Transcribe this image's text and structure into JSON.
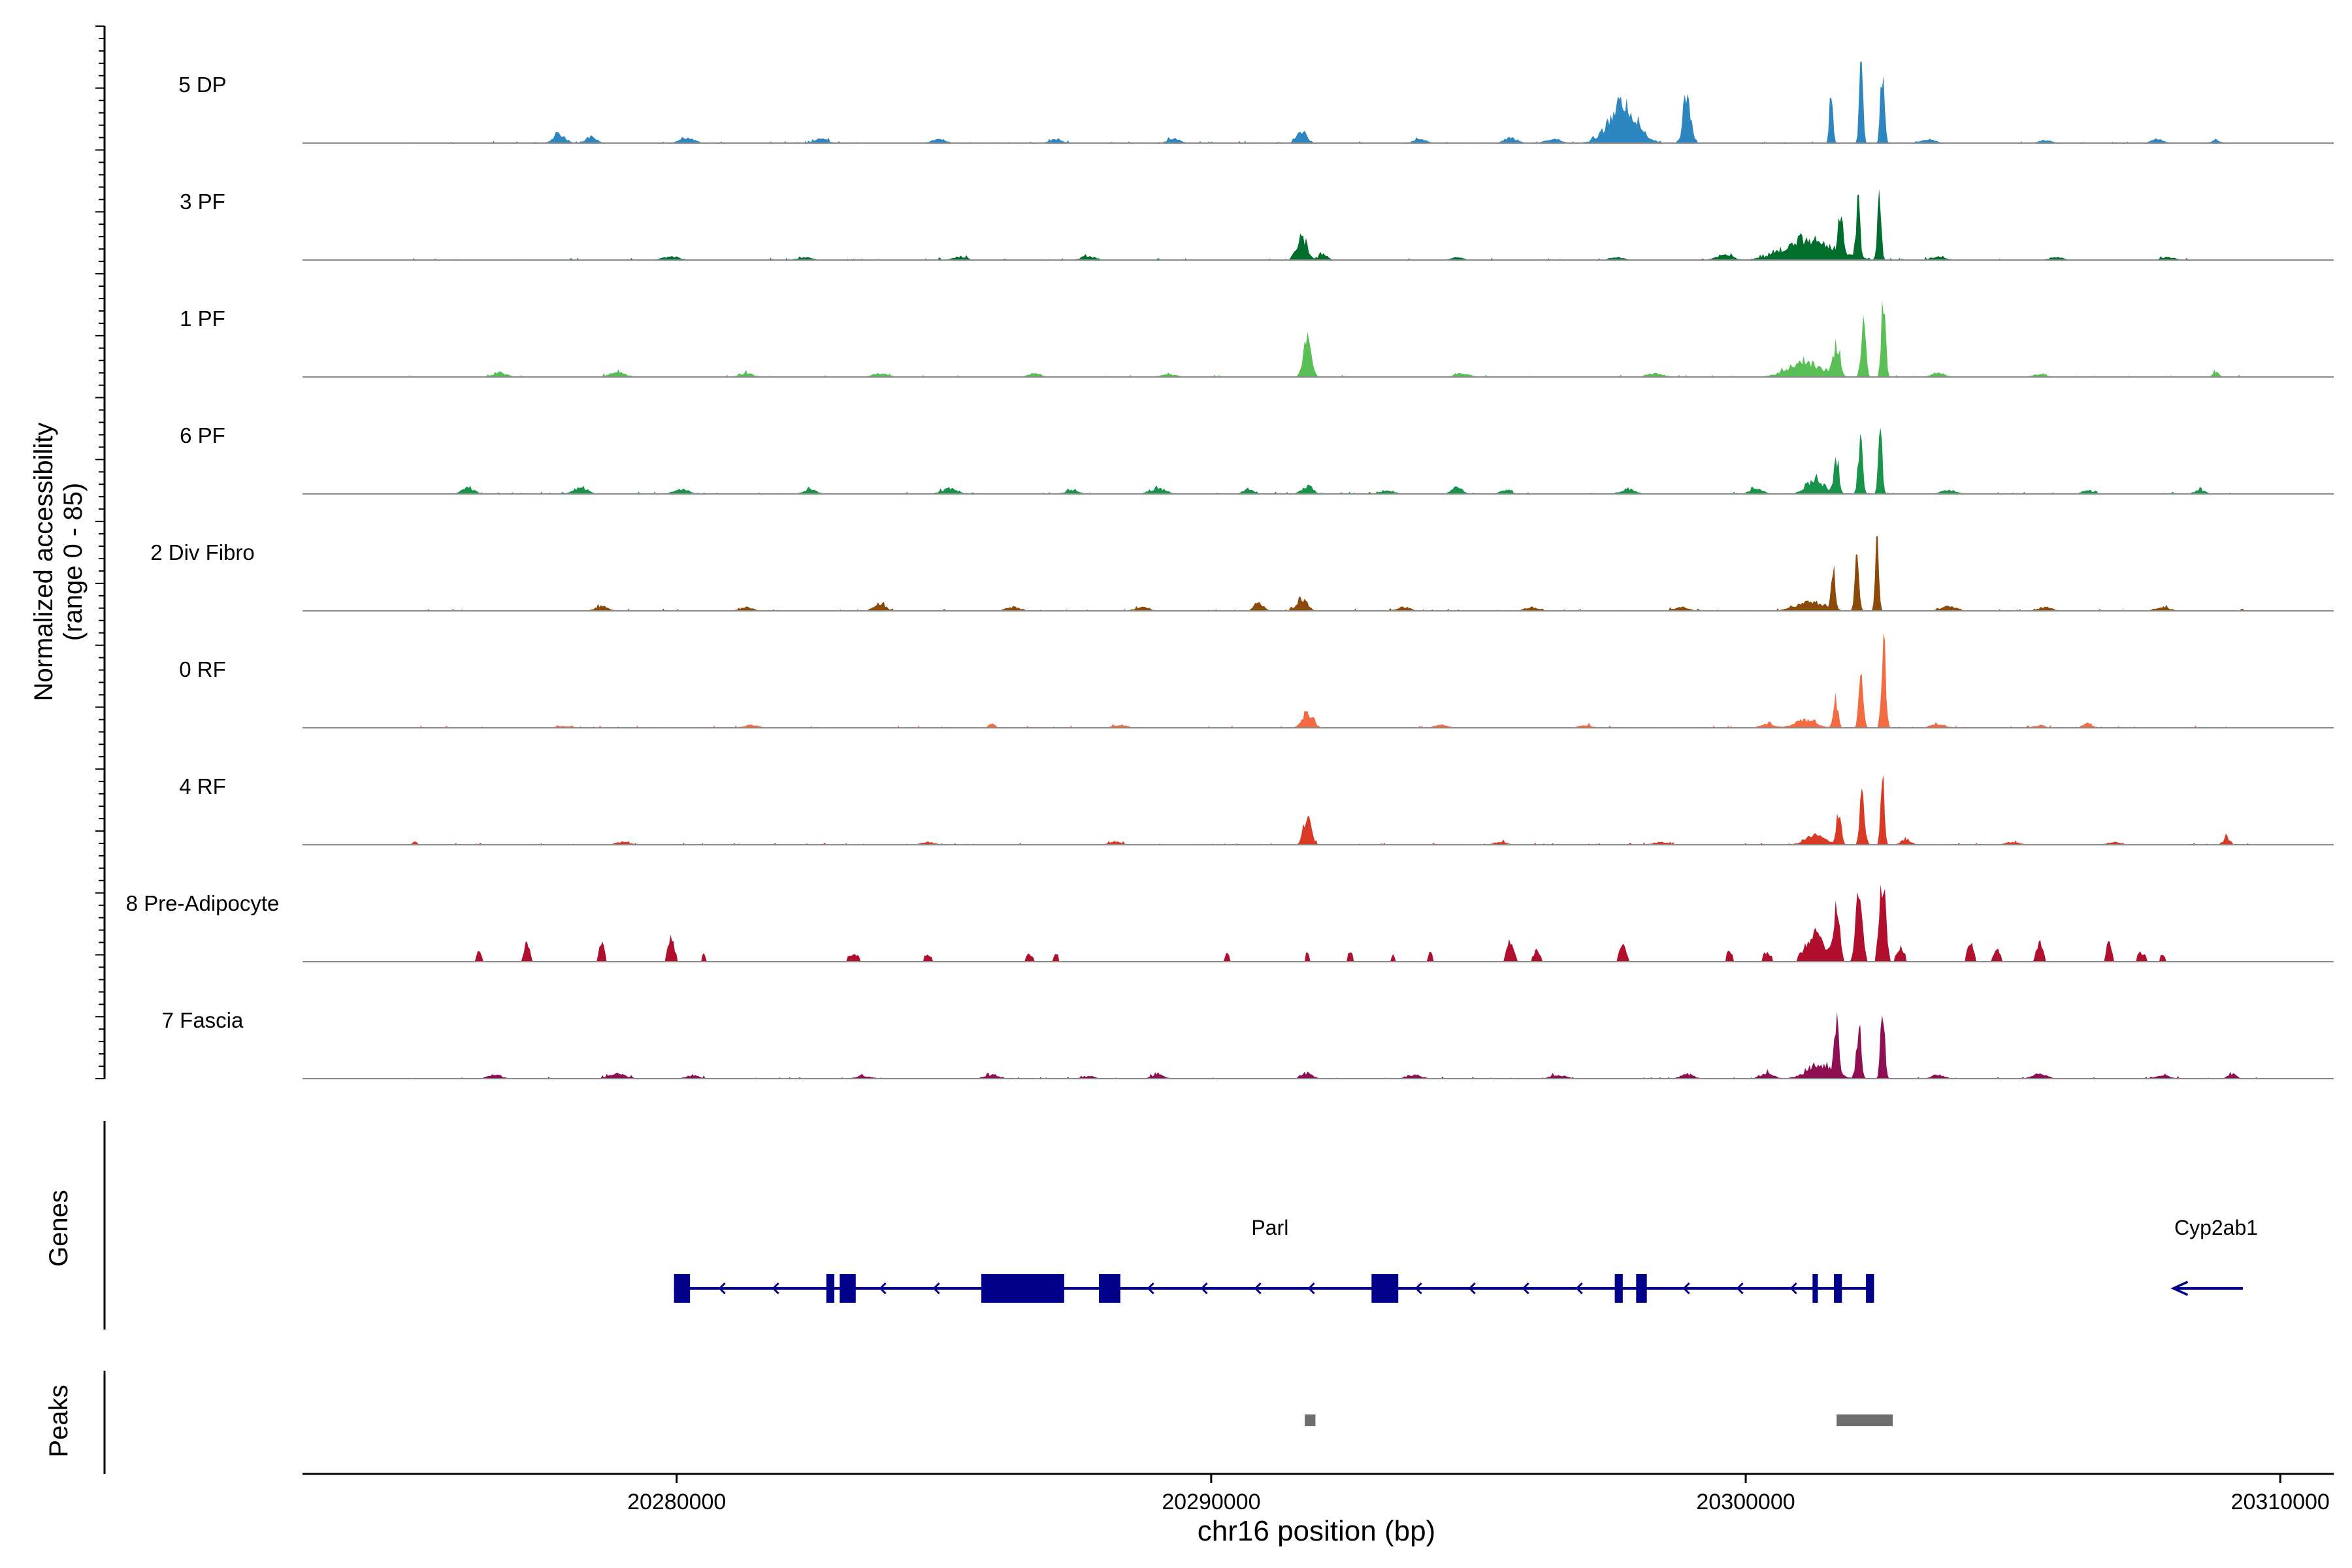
{
  "chart_data": {
    "type": "area",
    "title": "",
    "ylabel": "Normalized accessibility",
    "ylabel_range": "(range 0 - 85)",
    "xlabel": "chr16 position (bp)",
    "xlim": [
      20273000,
      20311000
    ],
    "ylim": [
      0,
      85
    ],
    "x_ticks": [
      20280000,
      20290000,
      20300000,
      20310000
    ],
    "x_tick_labels": [
      "20280000",
      "20290000",
      "20300000",
      "20310000"
    ],
    "tracks": [
      {
        "name": "5 DP",
        "color": "#2E86C1",
        "style": "smooth",
        "seed": 3,
        "peaks": [
          [
            20298900,
            50,
            70
          ],
          [
            20297700,
            40,
            260
          ],
          [
            20291700,
            14,
            90
          ],
          [
            20295600,
            6,
            120
          ],
          [
            20277800,
            10,
            110
          ],
          [
            20278400,
            7,
            100
          ],
          [
            20280200,
            5,
            140
          ],
          [
            20282700,
            5,
            120
          ],
          [
            20284900,
            4,
            130
          ],
          [
            20287100,
            4,
            120
          ],
          [
            20289300,
            5,
            110
          ],
          [
            20293900,
            4,
            120
          ],
          [
            20296400,
            5,
            130
          ],
          [
            20303400,
            4,
            140
          ],
          [
            20305600,
            3,
            120
          ],
          [
            20307700,
            4,
            110
          ],
          [
            20308800,
            3,
            90
          ]
        ],
        "spikes": [
          [
            20301600,
            52,
            32
          ],
          [
            20302160,
            82,
            34
          ],
          [
            20302560,
            86,
            36
          ]
        ]
      },
      {
        "name": "3 PF",
        "color": "#006D2C",
        "style": "smooth",
        "seed": 7,
        "peaks": [
          [
            20301200,
            22,
            450
          ],
          [
            20291700,
            24,
            95
          ],
          [
            20292100,
            6,
            80
          ],
          [
            20287700,
            4,
            140
          ],
          [
            20279900,
            4,
            150
          ],
          [
            20282400,
            3,
            140
          ],
          [
            20285300,
            4,
            120
          ],
          [
            20294600,
            3,
            120
          ],
          [
            20297600,
            3,
            140
          ],
          [
            20299600,
            5,
            160
          ],
          [
            20303600,
            4,
            130
          ],
          [
            20305800,
            3,
            140
          ],
          [
            20307900,
            3,
            120
          ]
        ],
        "spikes": [
          [
            20301780,
            40,
            40
          ],
          [
            20302100,
            62,
            36
          ],
          [
            20302500,
            80,
            34
          ]
        ]
      },
      {
        "name": "1 PF",
        "color": "#5BBF58",
        "style": "smooth",
        "seed": 11,
        "peaks": [
          [
            20291800,
            42,
            75
          ],
          [
            20301100,
            16,
            300
          ],
          [
            20298300,
            4,
            150
          ],
          [
            20276700,
            4,
            140
          ],
          [
            20278900,
            5,
            150
          ],
          [
            20281300,
            4,
            130
          ],
          [
            20283800,
            4,
            140
          ],
          [
            20286700,
            4,
            120
          ],
          [
            20289200,
            3,
            140
          ],
          [
            20294700,
            4,
            140
          ],
          [
            20303600,
            4,
            140
          ],
          [
            20305500,
            3,
            120
          ],
          [
            20308800,
            5,
            60
          ]
        ],
        "spikes": [
          [
            20301700,
            34,
            60
          ],
          [
            20302200,
            56,
            42
          ],
          [
            20302580,
            92,
            36
          ]
        ]
      },
      {
        "name": "6 PF",
        "color": "#17934A",
        "style": "smooth",
        "seed": 13,
        "peaks": [
          [
            20301300,
            16,
            160
          ],
          [
            20291800,
            8,
            110
          ],
          [
            20294600,
            7,
            100
          ],
          [
            20276100,
            6,
            120
          ],
          [
            20278200,
            7,
            130
          ],
          [
            20280100,
            5,
            140
          ],
          [
            20282500,
            5,
            120
          ],
          [
            20285100,
            6,
            140
          ],
          [
            20287400,
            4,
            120
          ],
          [
            20289000,
            6,
            150
          ],
          [
            20290700,
            5,
            100
          ],
          [
            20293300,
            4,
            120
          ],
          [
            20295500,
            4,
            100
          ],
          [
            20297800,
            5,
            140
          ],
          [
            20300200,
            5,
            130
          ],
          [
            20303800,
            4,
            140
          ],
          [
            20306400,
            4,
            100
          ],
          [
            20308500,
            4,
            100
          ]
        ],
        "spikes": [
          [
            20301700,
            40,
            46
          ],
          [
            20302140,
            58,
            40
          ],
          [
            20302520,
            72,
            34
          ]
        ]
      },
      {
        "name": "2 Div Fibro",
        "color": "#8B4A0A",
        "style": "smooth",
        "seed": 17,
        "peaks": [
          [
            20301200,
            10,
            260
          ],
          [
            20291700,
            13,
            100
          ],
          [
            20290900,
            8,
            90
          ],
          [
            20283800,
            8,
            110
          ],
          [
            20278600,
            5,
            120
          ],
          [
            20281300,
            4,
            120
          ],
          [
            20286300,
            4,
            140
          ],
          [
            20288700,
            4,
            130
          ],
          [
            20293600,
            4,
            130
          ],
          [
            20296000,
            4,
            140
          ],
          [
            20298800,
            4,
            130
          ],
          [
            20303800,
            5,
            150
          ],
          [
            20305600,
            4,
            130
          ],
          [
            20307800,
            4,
            140
          ]
        ],
        "spikes": [
          [
            20301640,
            42,
            36
          ],
          [
            20302080,
            58,
            38
          ],
          [
            20302460,
            78,
            32
          ]
        ]
      },
      {
        "name": "0 RF",
        "color": "#F26B43",
        "style": "smooth",
        "seed": 19,
        "peaks": [
          [
            20291800,
            17,
            100
          ],
          [
            20301100,
            8,
            200
          ],
          [
            20285900,
            4,
            60
          ],
          [
            20297000,
            3,
            120
          ],
          [
            20300400,
            4,
            130
          ],
          [
            20303600,
            4,
            140
          ],
          [
            20305500,
            3,
            100
          ],
          [
            20306400,
            5,
            90
          ],
          [
            20281400,
            3,
            140
          ],
          [
            20277900,
            2,
            150
          ],
          [
            20288300,
            3,
            140
          ],
          [
            20294300,
            3,
            130
          ]
        ],
        "spikes": [
          [
            20301680,
            32,
            44
          ],
          [
            20302160,
            70,
            40
          ],
          [
            20302580,
            96,
            38
          ]
        ]
      },
      {
        "name": "4 RF",
        "color": "#D93A25",
        "style": "smooth",
        "seed": 23,
        "peaks": [
          [
            20291800,
            32,
            70
          ],
          [
            20301300,
            10,
            180
          ],
          [
            20303000,
            6,
            90
          ],
          [
            20309000,
            8,
            60
          ],
          [
            20275100,
            4,
            40
          ],
          [
            20279000,
            3,
            140
          ],
          [
            20284700,
            3,
            120
          ],
          [
            20288200,
            3,
            130
          ],
          [
            20295400,
            3,
            120
          ],
          [
            20298400,
            3,
            140
          ],
          [
            20305000,
            3,
            130
          ],
          [
            20306900,
            3,
            120
          ]
        ],
        "spikes": [
          [
            20301740,
            38,
            44
          ],
          [
            20302180,
            58,
            40
          ],
          [
            20302560,
            70,
            34
          ]
        ]
      },
      {
        "name": "8 Pre-Adipocyte",
        "color": "#B0102E",
        "style": "blocky",
        "seed": 29,
        "peaks": [
          [
            20301300,
            30,
            180
          ],
          [
            20302900,
            16,
            70
          ],
          [
            20300400,
            10,
            80
          ],
          [
            20297700,
            18,
            70
          ],
          [
            20295600,
            22,
            70
          ],
          [
            20296100,
            12,
            70
          ],
          [
            20304200,
            20,
            60
          ],
          [
            20304700,
            16,
            60
          ],
          [
            20305500,
            22,
            60
          ],
          [
            20306800,
            22,
            50
          ],
          [
            20279900,
            26,
            60
          ],
          [
            20278600,
            20,
            50
          ],
          [
            20277200,
            22,
            50
          ],
          [
            20276300,
            10,
            60
          ],
          [
            20280500,
            8,
            40
          ],
          [
            20283300,
            8,
            120
          ],
          [
            20284700,
            8,
            80
          ],
          [
            20286600,
            8,
            80
          ],
          [
            20287100,
            8,
            60
          ],
          [
            20290300,
            8,
            60
          ],
          [
            20291800,
            12,
            30
          ],
          [
            20292600,
            10,
            50
          ],
          [
            20293400,
            8,
            40
          ],
          [
            20294100,
            10,
            40
          ],
          [
            20299700,
            12,
            60
          ],
          [
            20307400,
            10,
            80
          ],
          [
            20307800,
            8,
            50
          ]
        ],
        "spikes": [
          [
            20301700,
            58,
            60
          ],
          [
            20302120,
            82,
            60
          ],
          [
            20302560,
            86,
            60
          ]
        ]
      },
      {
        "name": "7 Fascia",
        "color": "#8E0F54",
        "style": "smooth",
        "seed": 31,
        "peaks": [
          [
            20301400,
            14,
            250
          ],
          [
            20300400,
            6,
            120
          ],
          [
            20291800,
            6,
            100
          ],
          [
            20289000,
            4,
            120
          ],
          [
            20276600,
            4,
            130
          ],
          [
            20278900,
            5,
            160
          ],
          [
            20280300,
            4,
            120
          ],
          [
            20283500,
            3,
            140
          ],
          [
            20285900,
            4,
            130
          ],
          [
            20287700,
            3,
            120
          ],
          [
            20293800,
            4,
            140
          ],
          [
            20296500,
            4,
            140
          ],
          [
            20298900,
            5,
            120
          ],
          [
            20303600,
            4,
            120
          ],
          [
            20305500,
            5,
            140
          ],
          [
            20307800,
            4,
            130
          ],
          [
            20309100,
            5,
            80
          ]
        ],
        "spikes": [
          [
            20301700,
            50,
            42
          ],
          [
            20302120,
            62,
            40
          ],
          [
            20302560,
            78,
            38
          ]
        ]
      }
    ],
    "genes": {
      "label": "Genes",
      "color": "#00008B",
      "items": [
        {
          "name": "Parl",
          "label_x": 20291100,
          "strand": "-",
          "line": [
            20279950,
            20302400
          ],
          "exons": [
            [
              20279950,
              20280250
            ],
            [
              20282800,
              20282950
            ],
            [
              20283050,
              20283350
            ],
            [
              20285700,
              20287250
            ],
            [
              20287900,
              20288300
            ],
            [
              20293000,
              20293500
            ],
            [
              20297550,
              20297700
            ],
            [
              20297950,
              20298150
            ],
            [
              20301250,
              20301350
            ],
            [
              20301650,
              20301800
            ],
            [
              20302250,
              20302400
            ]
          ]
        },
        {
          "name": "Cyp2ab1",
          "label_x": 20308800,
          "strand": "-",
          "line": [
            20308000,
            20309300
          ],
          "exons": []
        }
      ]
    },
    "peaks_track": {
      "label": "Peaks",
      "color": "#6E6E6E",
      "regions": [
        [
          20291750,
          20291950
        ],
        [
          20301700,
          20302750
        ]
      ]
    }
  }
}
